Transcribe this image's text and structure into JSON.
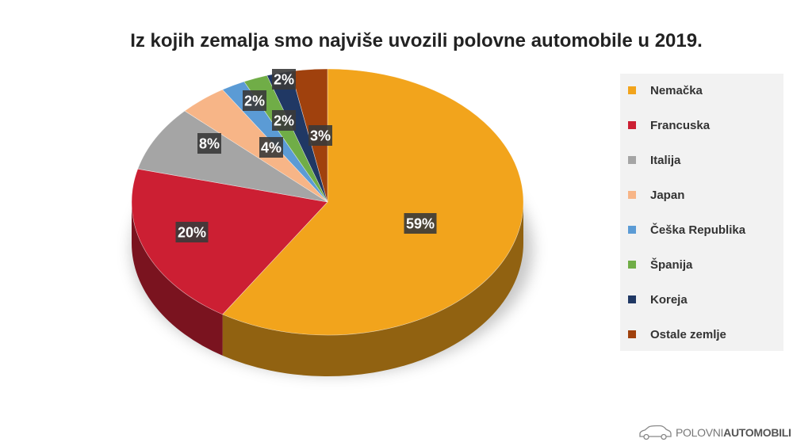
{
  "title": "Iz kojih zemalja smo najviše uvozili polovne automobile u 2019.",
  "chart_data": {
    "type": "pie",
    "title": "Iz kojih zemalja smo najviše uvozili polovne automobile u 2019.",
    "unit": "%",
    "slices": [
      {
        "label": "Nemačka",
        "value": 59,
        "display": "59%",
        "color": "#f2a41c"
      },
      {
        "label": "Francuska",
        "value": 20,
        "display": "20%",
        "color": "#cc1f33"
      },
      {
        "label": "Italija",
        "value": 8,
        "display": "8%",
        "color": "#a5a5a5"
      },
      {
        "label": "Japan",
        "value": 4,
        "display": "4%",
        "color": "#f7b587"
      },
      {
        "label": "Češka Republika",
        "value": 2,
        "display": "2%",
        "color": "#5b9bd5"
      },
      {
        "label": "Španija",
        "value": 2,
        "display": "2%",
        "color": "#70ad47"
      },
      {
        "label": "Koreja",
        "value": 2,
        "display": "2%",
        "color": "#203864"
      },
      {
        "label": "Ostale zemlje",
        "value": 3,
        "display": "3%",
        "color": "#a0410d"
      }
    ],
    "legend_position": "right"
  },
  "brand": {
    "light": "POLOVNI",
    "bold": "AUTOMOBILI",
    "icon": "car-icon"
  }
}
